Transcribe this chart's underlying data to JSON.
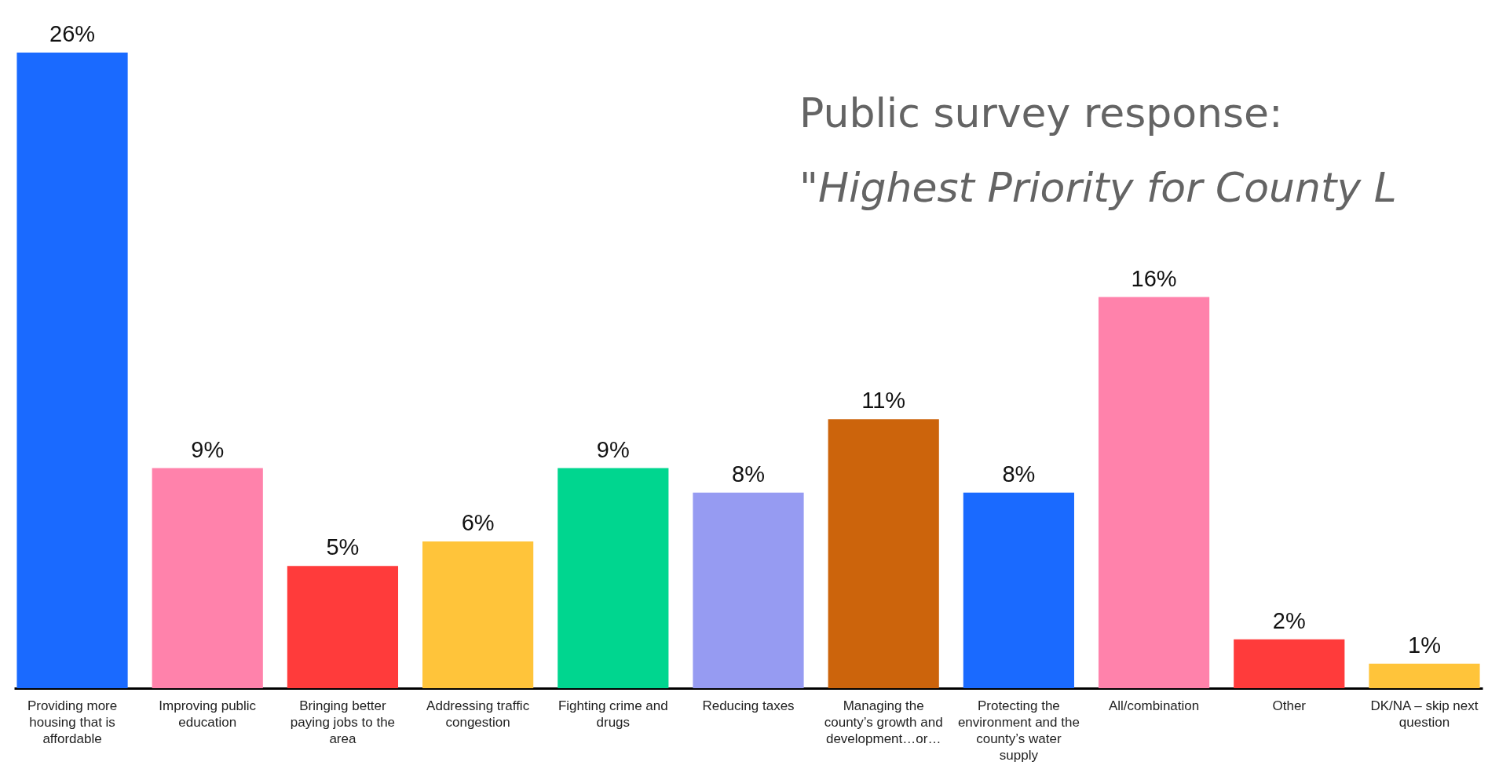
{
  "chart_data": {
    "type": "bar",
    "title": "Public survey response:",
    "subtitle": "\"Highest Priority for County L",
    "categories": [
      "Providing more housing that is affordable",
      "Improving public education",
      "Bringing better paying jobs to the area",
      "Addressing traffic congestion",
      "Fighting crime and drugs",
      "Reducing taxes",
      "Managing the county’s growth and development…or…",
      "Protecting the environment and the county’s water supply",
      "All/combination",
      "Other",
      "DK/NA – skip next question"
    ],
    "values": [
      26,
      9,
      5,
      6,
      9,
      8,
      11,
      8,
      16,
      2,
      1
    ],
    "value_labels": [
      "26%",
      "9%",
      "5%",
      "6%",
      "9%",
      "8%",
      "11%",
      "8%",
      "16%",
      "2%",
      "1%"
    ],
    "colors": [
      "#1a6aff",
      "#ff82ab",
      "#ff3b3b",
      "#ffc43a",
      "#00d68f",
      "#969bf2",
      "#cc640c",
      "#1a6aff",
      "#ff82ab",
      "#ff3b3b",
      "#ffc43a"
    ]
  }
}
